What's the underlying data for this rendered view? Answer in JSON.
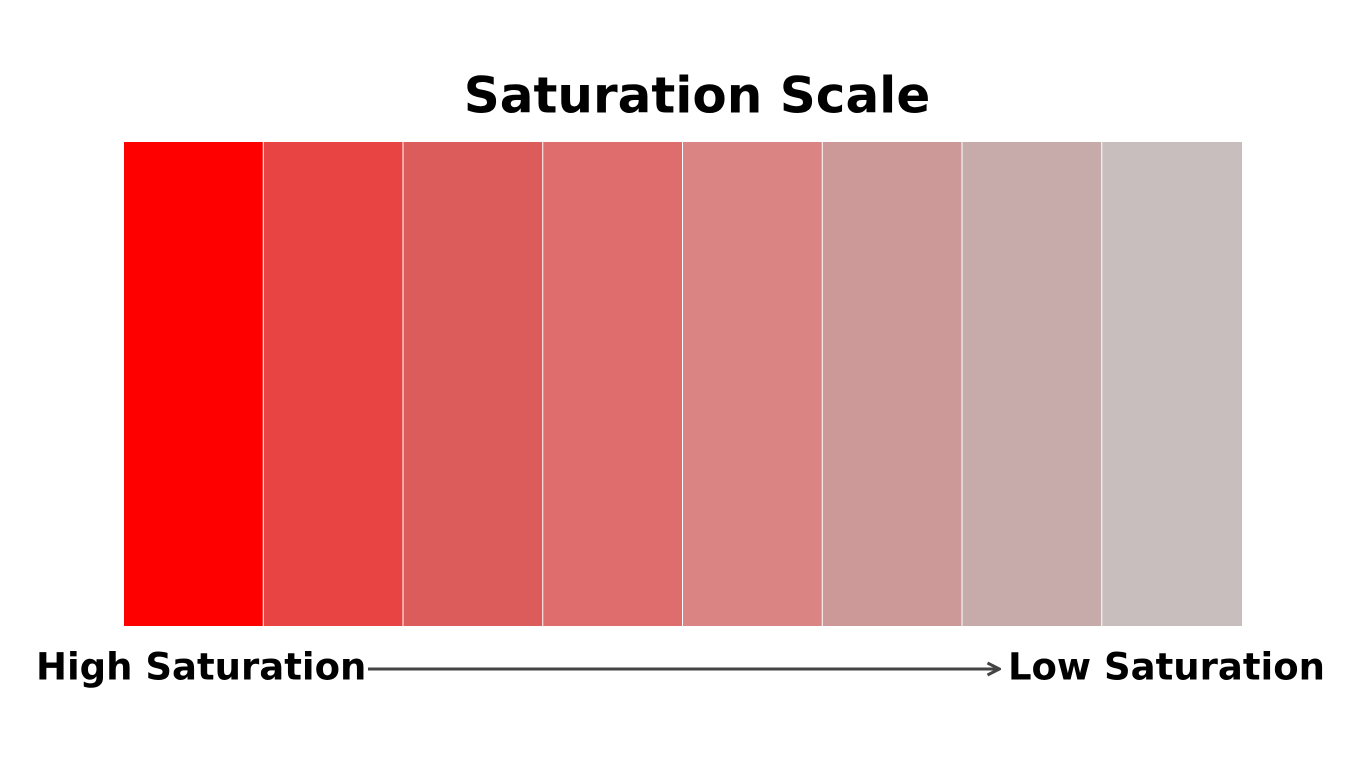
{
  "title": "Saturation Scale",
  "swatches": [
    {
      "color": "#ff0000"
    },
    {
      "color": "#e84444"
    },
    {
      "color": "#dc5c5c"
    },
    {
      "color": "#e06d6d"
    },
    {
      "color": "#db8484"
    },
    {
      "color": "#cc9898"
    },
    {
      "color": "#c7abab"
    },
    {
      "color": "#c9bebe"
    }
  ],
  "left_label": "High Saturation",
  "right_label": "Low Saturation"
}
